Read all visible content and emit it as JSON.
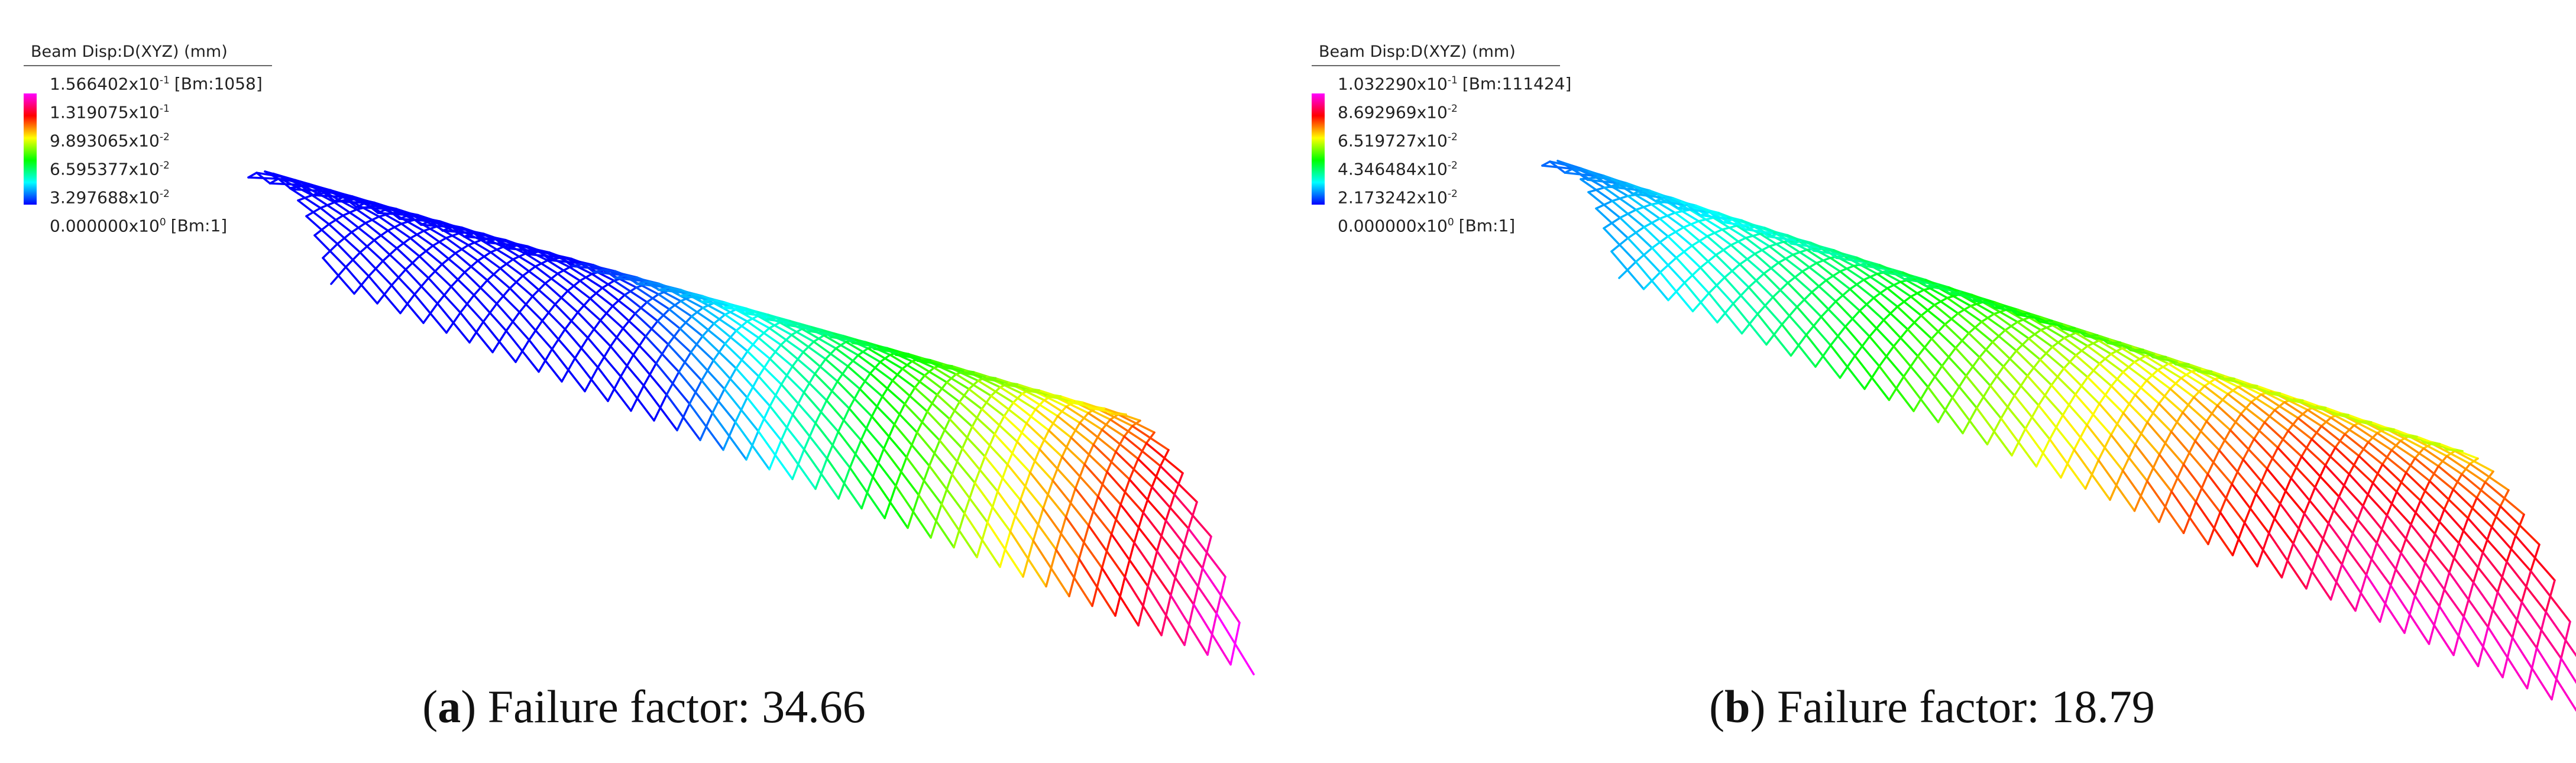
{
  "panels": [
    {
      "id": "a",
      "legend": {
        "title": "Beam Disp:D(XYZ)  (mm)",
        "values": [
          {
            "mantissa": "1.566402x10",
            "exponent": "-1",
            "tag": "[Bm:1058]"
          },
          {
            "mantissa": "1.319075x10",
            "exponent": "-1",
            "tag": ""
          },
          {
            "mantissa": "9.893065x10",
            "exponent": "-2",
            "tag": ""
          },
          {
            "mantissa": "6.595377x10",
            "exponent": "-2",
            "tag": ""
          },
          {
            "mantissa": "3.297688x10",
            "exponent": "-2",
            "tag": ""
          },
          {
            "mantissa": "0.000000x10",
            "exponent": "0",
            "tag": "[Bm:1]"
          }
        ]
      },
      "caption": {
        "label": "a",
        "text": " Failure factor: 34.66"
      }
    },
    {
      "id": "b",
      "legend": {
        "title": "Beam Disp:D(XYZ)  (mm)",
        "values": [
          {
            "mantissa": "1.032290x10",
            "exponent": "-1",
            "tag": "[Bm:111424]"
          },
          {
            "mantissa": "8.692969x10",
            "exponent": "-2",
            "tag": ""
          },
          {
            "mantissa": "6.519727x10",
            "exponent": "-2",
            "tag": ""
          },
          {
            "mantissa": "4.346484x10",
            "exponent": "-2",
            "tag": ""
          },
          {
            "mantissa": "2.173242x10",
            "exponent": "-2",
            "tag": ""
          },
          {
            "mantissa": "0.000000x10",
            "exponent": "0",
            "tag": "[Bm:1]"
          }
        ]
      },
      "caption": {
        "label": "b",
        "text": " Failure factor: 18.79"
      }
    }
  ],
  "colors": {
    "colorbar": [
      "#ff00ff",
      "#ff0000",
      "#ffff00",
      "#00ff00",
      "#00ffff",
      "#0000ff"
    ]
  }
}
